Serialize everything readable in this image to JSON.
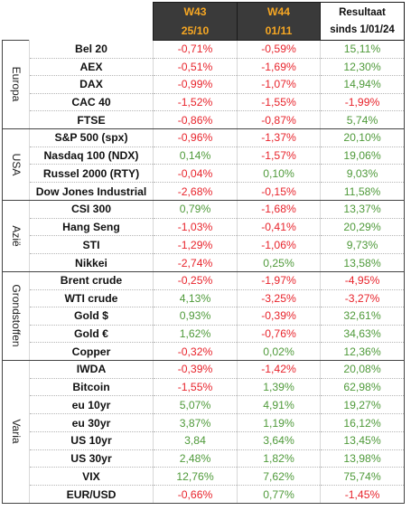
{
  "header": {
    "w43_label": "W43",
    "w43_date": "25/10",
    "w44_label": "W44",
    "w44_date": "01/11",
    "result_line1": "Resultaat",
    "result_line2": "sinds 1/01/24"
  },
  "groups": [
    {
      "label": "Europa",
      "rows": [
        {
          "name": "Bel 20",
          "w43": "-0,71%",
          "w44": "-0,59%",
          "ytd": "15,11%"
        },
        {
          "name": "AEX",
          "w43": "-0,51%",
          "w44": "-1,69%",
          "ytd": "12,30%"
        },
        {
          "name": "DAX",
          "w43": "-0,99%",
          "w44": "-1,07%",
          "ytd": "14,94%"
        },
        {
          "name": "CAC 40",
          "w43": "-1,52%",
          "w44": "-1,55%",
          "ytd": "-1,99%"
        },
        {
          "name": "FTSE",
          "w43": "-0,86%",
          "w44": "-0,87%",
          "ytd": "5,74%"
        }
      ]
    },
    {
      "label": "USA",
      "rows": [
        {
          "name": "S&P 500 (spx)",
          "w43": "-0,96%",
          "w44": "-1,37%",
          "ytd": "20,10%"
        },
        {
          "name": "Nasdaq 100 (NDX)",
          "w43": "0,14%",
          "w44": "-1,57%",
          "ytd": "19,06%"
        },
        {
          "name": "Russel 2000 (RTY)",
          "w43": "-0,04%",
          "w44": "0,10%",
          "ytd": "9,03%"
        },
        {
          "name": "Dow Jones Industrial",
          "w43": "-2,68%",
          "w44": "-0,15%",
          "ytd": "11,58%"
        }
      ]
    },
    {
      "label": "Azië",
      "rows": [
        {
          "name": "CSI 300",
          "w43": "0,79%",
          "w44": "-1,68%",
          "ytd": "13,37%"
        },
        {
          "name": "Hang Seng",
          "w43": "-1,03%",
          "w44": "-0,41%",
          "ytd": "20,29%"
        },
        {
          "name": "STI",
          "w43": "-1,29%",
          "w44": "-1,06%",
          "ytd": "9,73%"
        },
        {
          "name": "Nikkei",
          "w43": "-2,74%",
          "w44": "0,25%",
          "ytd": "13,58%"
        }
      ]
    },
    {
      "label": "Grondstoffen",
      "rows": [
        {
          "name": "Brent crude",
          "w43": "-0,25%",
          "w44": "-1,97%",
          "ytd": "-4,95%"
        },
        {
          "name": "WTI crude",
          "w43": "4,13%",
          "w44": "-3,25%",
          "ytd": "-3,27%"
        },
        {
          "name": "Gold $",
          "w43": "0,93%",
          "w44": "-0,39%",
          "ytd": "32,61%"
        },
        {
          "name": "Gold €",
          "w43": "1,62%",
          "w44": "-0,76%",
          "ytd": "34,63%"
        },
        {
          "name": "Copper",
          "w43": "-0,32%",
          "w44": "0,02%",
          "ytd": "12,36%"
        }
      ]
    },
    {
      "label": "Varia",
      "rows": [
        {
          "name": "IWDA",
          "w43": "-0,39%",
          "w44": "-1,42%",
          "ytd": "20,08%"
        },
        {
          "name": "Bitcoin",
          "w43": "-1,55%",
          "w44": "1,39%",
          "ytd": "62,98%"
        },
        {
          "name": "eu 10yr",
          "w43": "5,07%",
          "w44": "4,91%",
          "ytd": "19,27%"
        },
        {
          "name": "eu 30yr",
          "w43": "3,87%",
          "w44": "1,19%",
          "ytd": "16,12%"
        },
        {
          "name": "US 10yr",
          "w43": "3,84",
          "w44": "3,64%",
          "ytd": "13,45%"
        },
        {
          "name": "US 30yr",
          "w43": "2,48%",
          "w44": "1,82%",
          "ytd": "13,98%"
        },
        {
          "name": "VIX",
          "w43": "12,76%",
          "w44": "7,62%",
          "ytd": "75,74%"
        },
        {
          "name": "EUR/USD",
          "w43": "-0,66%",
          "w44": "0,77%",
          "ytd": "-1,45%"
        }
      ]
    }
  ],
  "colors": {
    "negative": "#e8242c",
    "positive": "#4f9a3a",
    "header_bg": "#3a3a3a",
    "header_text": "#f5a623"
  }
}
